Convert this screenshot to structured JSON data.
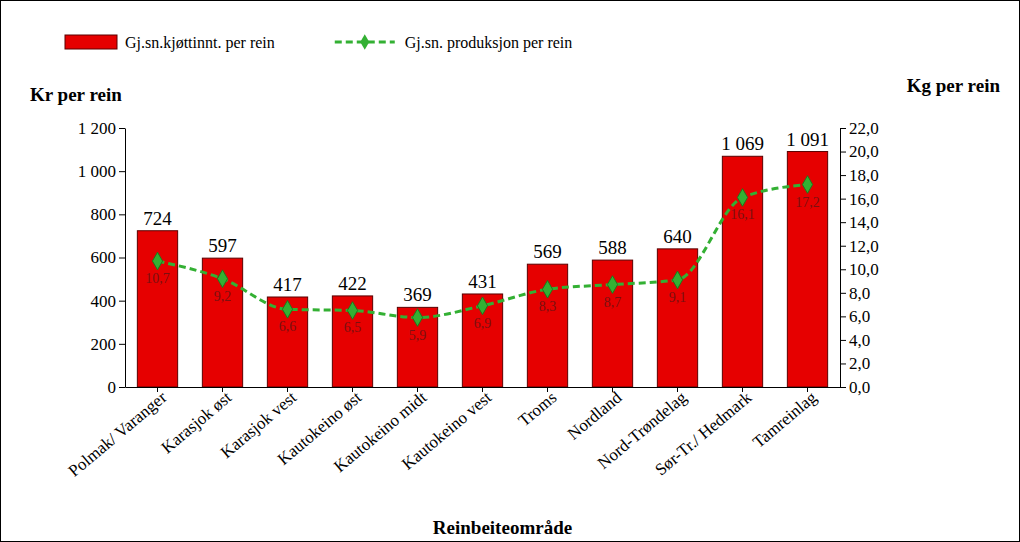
{
  "chart_data": {
    "type": "bar",
    "x_label": "Reinbeiteområde",
    "y_label": "Kr per rein",
    "y2_label": "Kg per rein",
    "categories": [
      "Polmak/ Varanger",
      "Karasjok øst",
      "Karasjok vest",
      "Kautokeino øst",
      "Kautokeino midt",
      "Kautokeino vest",
      "Troms",
      "Nordland",
      "Nord-Trøndelag",
      "Sør-Tr./ Hedmark",
      "Tamreinlag"
    ],
    "series": [
      {
        "name": "Gj.sn.kjøttinnt. per rein",
        "type": "bar",
        "color": "#e60000",
        "values": [
          724,
          597,
          417,
          422,
          369,
          431,
          569,
          588,
          640,
          1069,
          1091
        ],
        "value_labels": [
          "724",
          "597",
          "417",
          "422",
          "369",
          "431",
          "569",
          "588",
          "640",
          "1 069",
          "1 091"
        ]
      },
      {
        "name": "Gj.sn. produksjon per rein",
        "type": "line",
        "axis": "y2",
        "color": "#33b033",
        "marker": "diamond",
        "line_style": "dashed",
        "values": [
          10.7,
          9.2,
          6.6,
          6.5,
          5.9,
          6.9,
          8.3,
          8.7,
          9.1,
          16.1,
          17.2
        ],
        "value_labels": [
          "10,7",
          "9,2",
          "6,6",
          "6,5",
          "5,9",
          "6,9",
          "8,3",
          "8,7",
          "9,1",
          "16,1",
          "17,2"
        ]
      }
    ],
    "ylim": [
      0,
      1200
    ],
    "yticks": [
      0,
      200,
      400,
      600,
      800,
      {
        "value": 1000,
        "label": "1 000"
      },
      {
        "value": 1200,
        "label": "1 200"
      }
    ],
    "y2lim": [
      0,
      22
    ],
    "y2ticks": [
      {
        "value": 0,
        "label": "0,0"
      },
      {
        "value": 2,
        "label": "2,0"
      },
      {
        "value": 4,
        "label": "4,0"
      },
      {
        "value": 6,
        "label": "6,0"
      },
      {
        "value": 8,
        "label": "8,0"
      },
      {
        "value": 10,
        "label": "10,0"
      },
      {
        "value": 12,
        "label": "12,0"
      },
      {
        "value": 14,
        "label": "14,0"
      },
      {
        "value": 16,
        "label": "16,0"
      },
      {
        "value": 18,
        "label": "18,0"
      },
      {
        "value": 20,
        "label": "20,0"
      },
      {
        "value": 22,
        "label": "22,0"
      }
    ],
    "legend": "top-left",
    "data_labels": true
  }
}
